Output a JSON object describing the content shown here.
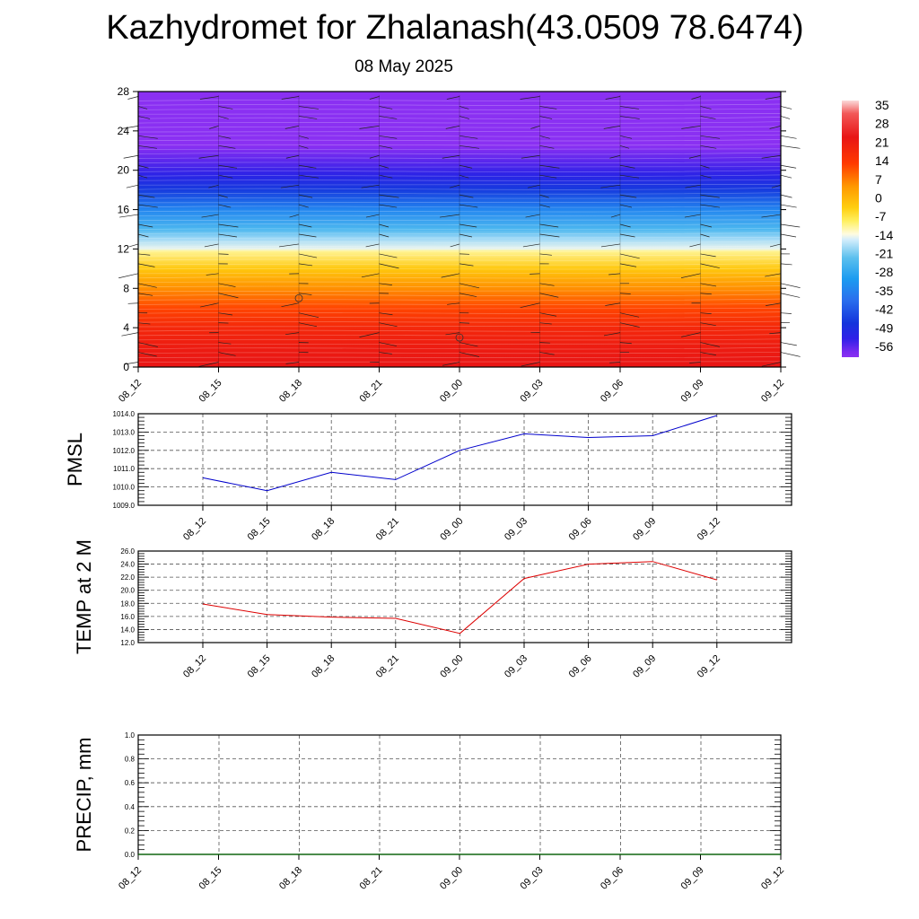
{
  "header": {
    "title": "Kazhydromet for Zhalanash(43.0509 78.6474)",
    "date": "08 May 2025"
  },
  "colors": {
    "pmsl_line": "#0000cc",
    "temp_line": "#dd0000",
    "precip_line": "#006600",
    "grid": "#555555"
  },
  "chart_data": [
    {
      "type": "heatmap",
      "x_ticks": [
        "08_12",
        "08_15",
        "08_18",
        "08_21",
        "09_00",
        "09_03",
        "09_06",
        "09_09",
        "09_12"
      ],
      "y_ticks": [
        "0",
        "4",
        "8",
        "12",
        "16",
        "20",
        "24",
        "28"
      ],
      "ylim": [
        0,
        28
      ],
      "colorbar": {
        "labels": [
          "35",
          "28",
          "21",
          "14",
          "7",
          "0",
          "-7",
          "-14",
          "-21",
          "-28",
          "-35",
          "-42",
          "-49",
          "-56"
        ],
        "stops": [
          {
            "v": 38,
            "c": "#fbdada"
          },
          {
            "v": 33,
            "c": "#f25858"
          },
          {
            "v": 24,
            "c": "#e81515"
          },
          {
            "v": 14,
            "c": "#ff3a00"
          },
          {
            "v": 5,
            "c": "#ff9a00"
          },
          {
            "v": -3,
            "c": "#ffcf10"
          },
          {
            "v": -8,
            "c": "#fff060"
          },
          {
            "v": -13,
            "c": "#fffbe0"
          },
          {
            "v": -15,
            "c": "#d6eefc"
          },
          {
            "v": -22,
            "c": "#5cc0ee"
          },
          {
            "v": -30,
            "c": "#1c9cf0"
          },
          {
            "v": -38,
            "c": "#2a70ee"
          },
          {
            "v": -47,
            "c": "#1434dc"
          },
          {
            "v": -53,
            "c": "#3020e8"
          },
          {
            "v": -58,
            "c": "#7a2bf0"
          },
          {
            "v": -60,
            "c": "#8a30f2"
          }
        ]
      },
      "temperature_profile": [
        {
          "y": 0,
          "t": 24
        },
        {
          "y": 2,
          "t": 22
        },
        {
          "y": 4,
          "t": 19
        },
        {
          "y": 6,
          "t": 13
        },
        {
          "y": 8,
          "t": 6
        },
        {
          "y": 10,
          "t": -2
        },
        {
          "y": 11.8,
          "t": -10
        },
        {
          "y": 12,
          "t": -14
        },
        {
          "y": 13,
          "t": -18
        },
        {
          "y": 14,
          "t": -24
        },
        {
          "y": 16,
          "t": -34
        },
        {
          "y": 18,
          "t": -46
        },
        {
          "y": 19.5,
          "t": -52
        },
        {
          "y": 21,
          "t": -56
        },
        {
          "y": 22.5,
          "t": -60
        },
        {
          "y": 28,
          "t": -60
        }
      ]
    },
    {
      "type": "line",
      "ylabel": "PMSL",
      "x": [
        "08_12",
        "08_15",
        "08_18",
        "08_21",
        "09_00",
        "09_03",
        "09_06",
        "09_09",
        "09_12"
      ],
      "y_ticks": [
        "1009.0",
        "1010.0",
        "1011.0",
        "1012.0",
        "1013.0",
        "1014.0"
      ],
      "ylim": [
        1009,
        1014
      ],
      "values": [
        1010.5,
        1009.8,
        1010.8,
        1010.4,
        1012.0,
        1012.9,
        1012.7,
        1012.8,
        1013.9
      ]
    },
    {
      "type": "line",
      "ylabel": "TEMP at 2 M",
      "x": [
        "08_12",
        "08_15",
        "08_18",
        "08_21",
        "09_00",
        "09_03",
        "09_06",
        "09_09",
        "09_12"
      ],
      "y_ticks": [
        "12.0",
        "14.0",
        "16.0",
        "18.0",
        "20.0",
        "22.0",
        "24.0",
        "26.0"
      ],
      "ylim": [
        12,
        26
      ],
      "values": [
        17.9,
        16.3,
        15.9,
        15.7,
        13.4,
        21.8,
        24.0,
        24.4,
        21.6
      ]
    },
    {
      "type": "line",
      "ylabel": "PRECIP, mm",
      "x_ticks": [
        "08_12",
        "08_15",
        "08_18",
        "08_21",
        "09_00",
        "09_03",
        "09_06",
        "09_09",
        "09_12"
      ],
      "y_ticks": [
        "0.0",
        "0.2",
        "0.4",
        "0.6",
        "0.8",
        "1.0"
      ],
      "ylim": [
        0,
        1
      ],
      "values": [
        0,
        0,
        0,
        0,
        0,
        0,
        0,
        0,
        0
      ]
    }
  ]
}
